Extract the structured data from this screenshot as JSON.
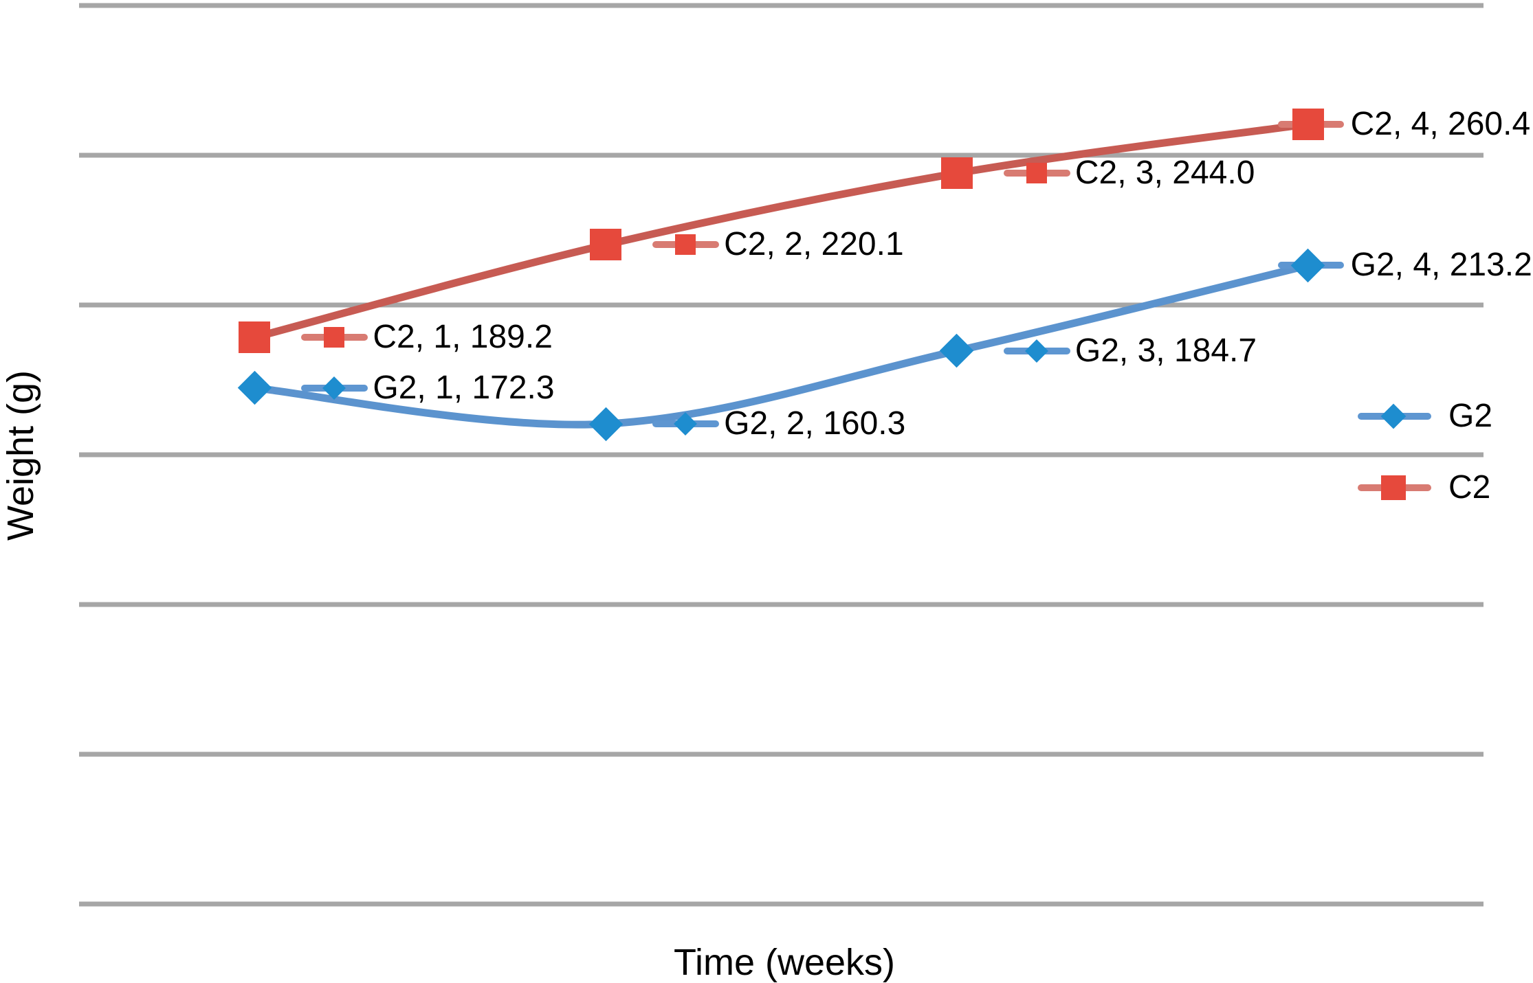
{
  "chart_data": {
    "type": "line",
    "smooth": true,
    "title": "",
    "xlabel": "Time (weeks)",
    "ylabel": "Weight (g)",
    "x": [
      1,
      2,
      3,
      4
    ],
    "ylim": [
      0,
      300
    ],
    "ytick_step": 50,
    "grid_on": true,
    "grid_color": "#A6A6A6",
    "background_color": "#FFFFFF",
    "text_color": "#000000",
    "legend_position": "right-middle",
    "series": [
      {
        "name": "G2",
        "marker_shape": "diamond",
        "values": [
          172.3,
          160.3,
          184.7,
          213.2
        ],
        "point_labels": [
          "G2, 1, 172.3",
          "G2, 2, 160.3",
          "G2, 3, 184.7",
          "G2, 4, 213.2"
        ],
        "line_color": "#5B93CE",
        "marker_color": "#1E8DCF",
        "key_line_color": "#5E96D1"
      },
      {
        "name": "C2",
        "marker_shape": "square",
        "values": [
          189.2,
          220.1,
          244.0,
          260.4
        ],
        "point_labels": [
          "C2, 1, 189.2",
          "C2, 2, 220.1",
          "C2, 3, 244.0",
          "C2, 4, 260.4"
        ],
        "line_color": "#C75B53",
        "marker_color": "#E6493C",
        "key_line_color": "#D87B72"
      }
    ]
  }
}
